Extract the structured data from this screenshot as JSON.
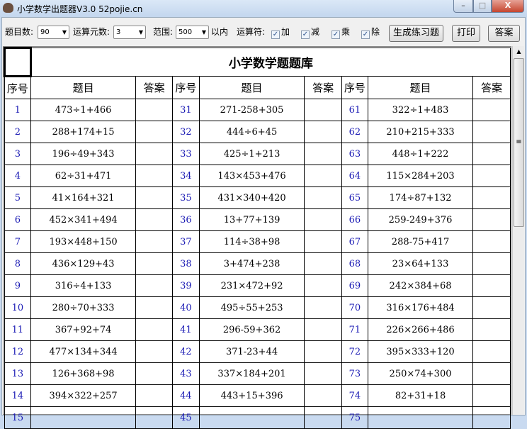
{
  "window": {
    "title": "小学数学出题器V3.0 52pojie.cn",
    "minimize": "–",
    "maximize": "□",
    "close": "X"
  },
  "toolbar": {
    "count_label": "题目数:",
    "count_value": "90",
    "operands_label": "运算元数:",
    "operands_value": "3",
    "range_label": "范围:",
    "range_value": "500",
    "range_suffix": "以内",
    "operators_label": "运算符:",
    "operators": [
      {
        "label": "加",
        "checked": true
      },
      {
        "label": "减",
        "checked": true
      },
      {
        "label": "乘",
        "checked": true
      },
      {
        "label": "除",
        "checked": true
      }
    ],
    "generate_button": "生成练习题",
    "print_button": "打印",
    "answer_button": "答案"
  },
  "sheet": {
    "title": "小学数学题题库",
    "headers": {
      "seq": "序号",
      "problem": "题目",
      "answer": "答案"
    },
    "columns": [
      {
        "start": 1,
        "problems": [
          "473÷1+466",
          "288+174+15",
          "196÷49+343",
          "62÷31+471",
          "41×164+321",
          "452×341+494",
          "193×448+150",
          "436×129+43",
          "316÷4+133",
          "280÷70+333",
          "367+92+74",
          "477×134+344",
          "126+368+98",
          "394×322+257"
        ]
      },
      {
        "start": 31,
        "problems": [
          "271-258+305",
          "444÷6+45",
          "425÷1+213",
          "143×453+476",
          "431×340+420",
          "13+77+139",
          "114÷38+98",
          "3+474+238",
          "231×472+92",
          "495÷55+253",
          "296-59+362",
          "371-23+44",
          "337×184+201",
          "443+15+396"
        ]
      },
      {
        "start": 61,
        "problems": [
          "322÷1+483",
          "210+215+333",
          "448÷1+222",
          "115×284+203",
          "174÷87+132",
          "259-249+376",
          "288-75+417",
          "23×64+133",
          "242×384+68",
          "316×176+484",
          "226×266+486",
          "395×333+120",
          "250×74+300",
          "82+31+18"
        ]
      }
    ],
    "partial_row": [
      "15",
      "45",
      "75"
    ]
  },
  "scrollbar": {
    "up": "▲",
    "grip": "≡"
  }
}
